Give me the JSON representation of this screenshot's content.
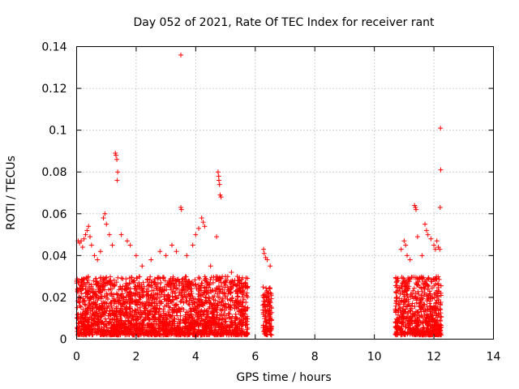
{
  "chart_data": {
    "type": "scatter",
    "title": "Day 052 of 2021, Rate Of TEC Index for receiver rant",
    "xlabel": "GPS time / hours",
    "ylabel": "ROTI / TECUs",
    "xlim": [
      0,
      14
    ],
    "ylim": [
      0,
      0.14
    ],
    "xticks": [
      0,
      2,
      4,
      6,
      8,
      10,
      12,
      14
    ],
    "xtick_labels": [
      "0",
      "2",
      "4",
      "6",
      "8",
      "10",
      "12",
      "14"
    ],
    "yticks": [
      0,
      0.02,
      0.04,
      0.06,
      0.08,
      0.1,
      0.12,
      0.14
    ],
    "ytick_labels": [
      "0",
      "0.02",
      "0.04",
      "0.06",
      "0.08",
      "0.1",
      "0.12",
      "0.14"
    ],
    "grid": true,
    "marker": "+",
    "color": "#ff0000",
    "series": [
      {
        "name": "ROTI",
        "dense_segments": [
          {
            "x_range": [
              0.0,
              5.75
            ],
            "y_range": [
              0.002,
              0.03
            ]
          },
          {
            "x_range": [
              6.25,
              6.55
            ],
            "y_range": [
              0.002,
              0.025
            ]
          },
          {
            "x_range": [
              10.7,
              12.25
            ],
            "y_range": [
              0.002,
              0.03
            ]
          }
        ],
        "points": [
          [
            0.05,
            0.047
          ],
          [
            0.1,
            0.046
          ],
          [
            0.15,
            0.047
          ],
          [
            0.2,
            0.044
          ],
          [
            0.25,
            0.048
          ],
          [
            0.3,
            0.05
          ],
          [
            0.35,
            0.052
          ],
          [
            0.4,
            0.054
          ],
          [
            0.45,
            0.049
          ],
          [
            0.5,
            0.045
          ],
          [
            0.6,
            0.04
          ],
          [
            0.7,
            0.038
          ],
          [
            0.8,
            0.042
          ],
          [
            0.9,
            0.058
          ],
          [
            0.95,
            0.06
          ],
          [
            1.0,
            0.055
          ],
          [
            1.1,
            0.05
          ],
          [
            1.2,
            0.045
          ],
          [
            1.3,
            0.089
          ],
          [
            1.32,
            0.088
          ],
          [
            1.35,
            0.086
          ],
          [
            1.38,
            0.08
          ],
          [
            1.36,
            0.076
          ],
          [
            1.5,
            0.05
          ],
          [
            1.7,
            0.047
          ],
          [
            1.8,
            0.045
          ],
          [
            2.0,
            0.04
          ],
          [
            2.2,
            0.035
          ],
          [
            2.5,
            0.038
          ],
          [
            2.8,
            0.042
          ],
          [
            3.0,
            0.04
          ],
          [
            3.2,
            0.045
          ],
          [
            3.35,
            0.042
          ],
          [
            3.5,
            0.136
          ],
          [
            3.5,
            0.063
          ],
          [
            3.52,
            0.062
          ],
          [
            3.7,
            0.04
          ],
          [
            3.9,
            0.045
          ],
          [
            4.0,
            0.05
          ],
          [
            4.1,
            0.053
          ],
          [
            4.2,
            0.058
          ],
          [
            4.25,
            0.056
          ],
          [
            4.3,
            0.054
          ],
          [
            4.5,
            0.035
          ],
          [
            4.7,
            0.049
          ],
          [
            4.75,
            0.08
          ],
          [
            4.77,
            0.078
          ],
          [
            4.78,
            0.076
          ],
          [
            4.8,
            0.074
          ],
          [
            4.82,
            0.069
          ],
          [
            4.85,
            0.068
          ],
          [
            5.0,
            0.03
          ],
          [
            5.2,
            0.032
          ],
          [
            5.4,
            0.03
          ],
          [
            5.6,
            0.025
          ],
          [
            6.28,
            0.043
          ],
          [
            6.3,
            0.041
          ],
          [
            6.35,
            0.039
          ],
          [
            6.4,
            0.038
          ],
          [
            6.5,
            0.035
          ],
          [
            10.8,
            0.028
          ],
          [
            10.9,
            0.043
          ],
          [
            11.0,
            0.047
          ],
          [
            11.05,
            0.045
          ],
          [
            11.1,
            0.04
          ],
          [
            11.2,
            0.038
          ],
          [
            11.35,
            0.064
          ],
          [
            11.38,
            0.063
          ],
          [
            11.4,
            0.062
          ],
          [
            11.45,
            0.049
          ],
          [
            11.6,
            0.04
          ],
          [
            11.7,
            0.055
          ],
          [
            11.75,
            0.052
          ],
          [
            11.8,
            0.05
          ],
          [
            11.9,
            0.048
          ],
          [
            12.0,
            0.045
          ],
          [
            12.05,
            0.043
          ],
          [
            12.1,
            0.047
          ],
          [
            12.15,
            0.044
          ],
          [
            12.2,
            0.043
          ],
          [
            12.22,
            0.101
          ],
          [
            12.23,
            0.081
          ],
          [
            12.21,
            0.063
          ]
        ]
      }
    ]
  }
}
